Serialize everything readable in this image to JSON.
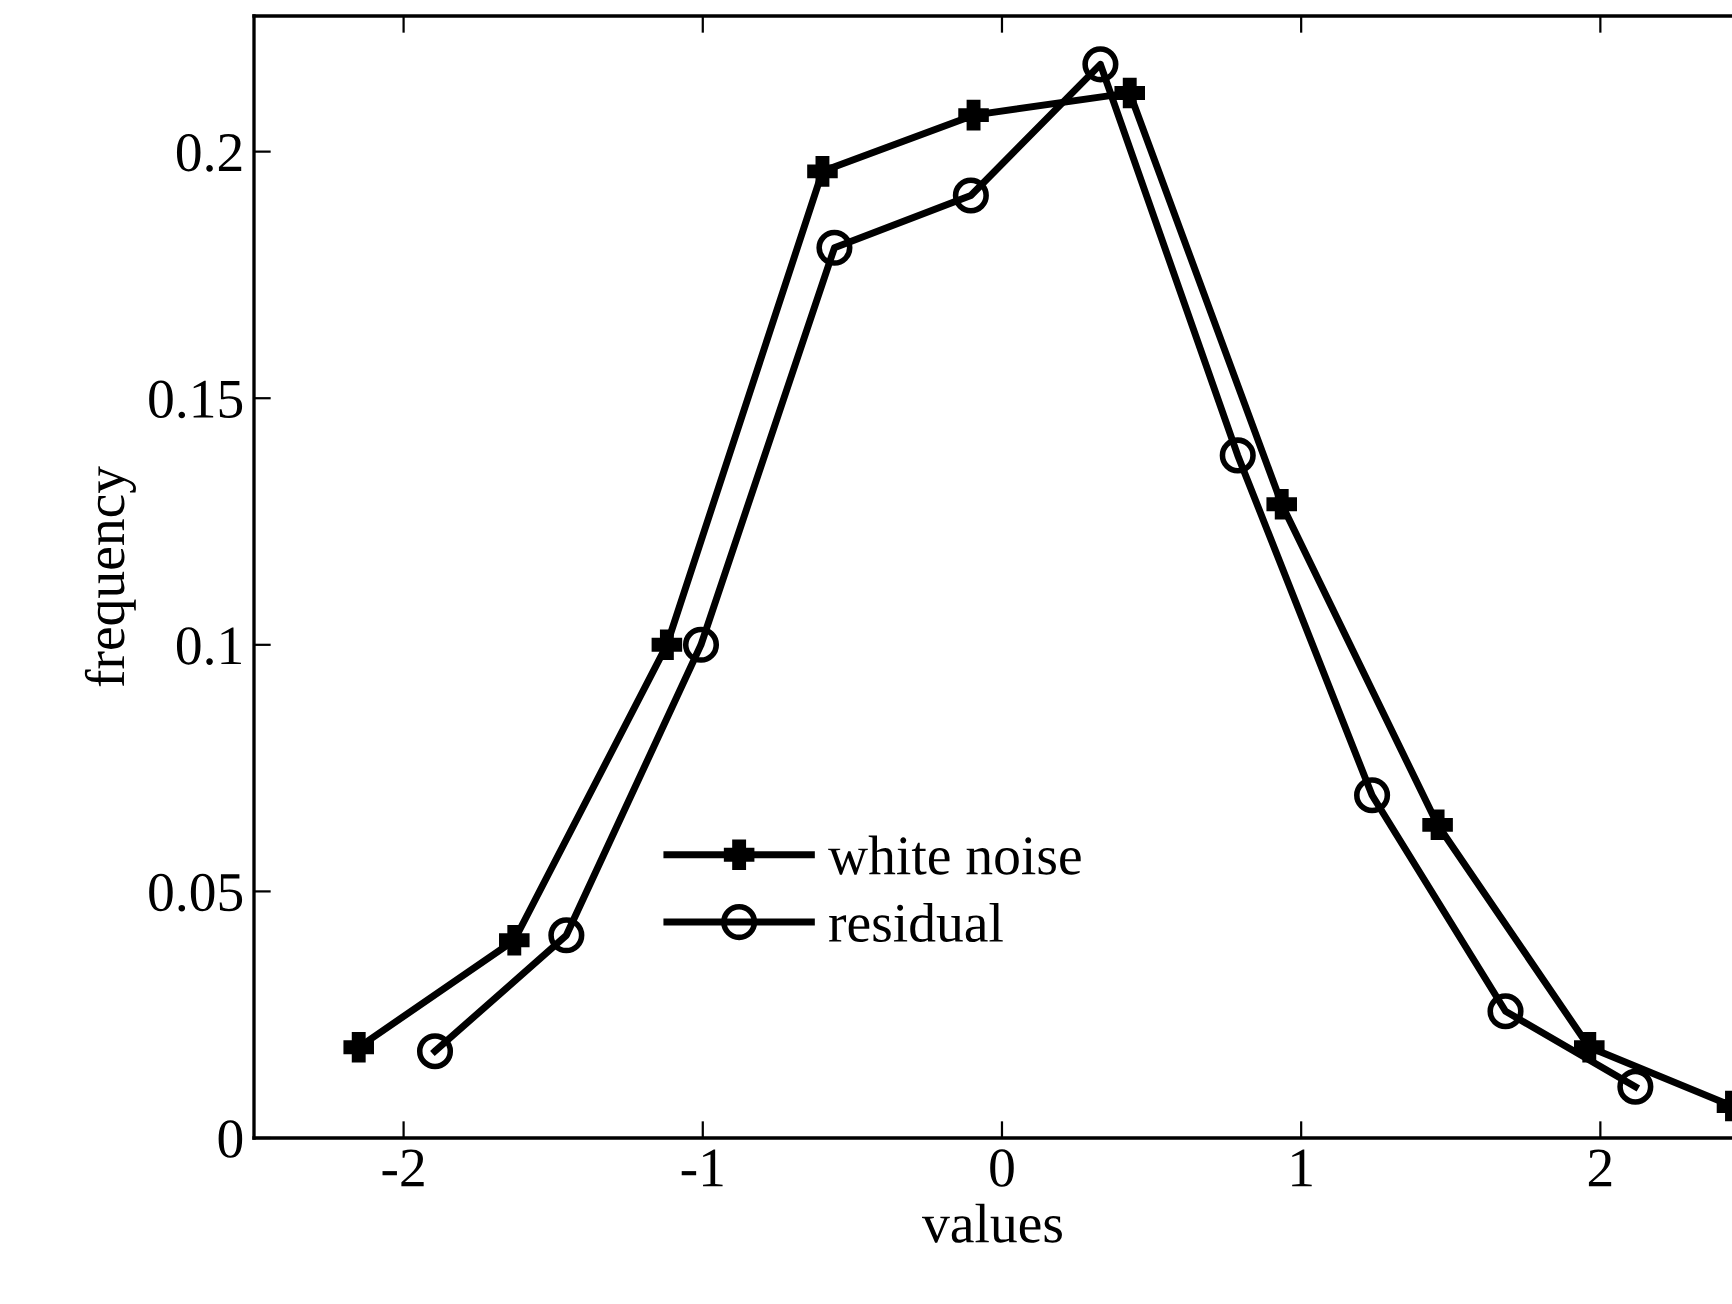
{
  "chart_data": {
    "type": "line",
    "xlabel": "values",
    "ylabel": "frequency",
    "xlim": [
      -2.5,
      2.44
    ],
    "ylim": [
      0,
      0.2275
    ],
    "xticks": [
      -2,
      -1,
      0,
      1,
      2
    ],
    "yticks": [
      0,
      0.05,
      0.1,
      0.15,
      0.2
    ],
    "grid": false,
    "legend": "bottom",
    "line_style": "solid",
    "series": [
      {
        "name": "white noise",
        "color": "#000000",
        "marker": "cross",
        "x": [
          -2.15,
          -1.63,
          -1.12,
          -0.6,
          -0.095,
          0.427,
          0.935,
          1.456,
          1.963,
          2.44
        ],
        "values": [
          0.0184,
          0.0401,
          0.1,
          0.196,
          0.2074,
          0.2119,
          0.1285,
          0.0635,
          0.0184,
          0.0065
        ]
      },
      {
        "name": "residual",
        "color": "#000000",
        "marker": "circle",
        "x": [
          -1.895,
          -1.456,
          -1.006,
          -0.56,
          -0.104,
          0.329,
          0.788,
          1.237,
          1.683,
          2.117
        ],
        "values": [
          0.0176,
          0.0411,
          0.1,
          0.1805,
          0.1911,
          0.2177,
          0.1384,
          0.0695,
          0.0257,
          0.0104
        ]
      }
    ]
  }
}
